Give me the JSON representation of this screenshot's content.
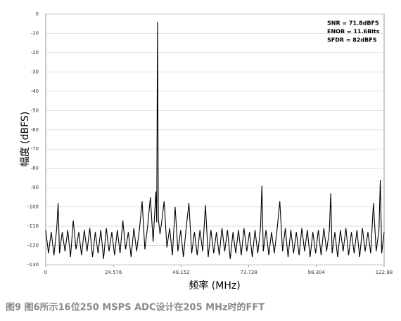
{
  "chart_data": {
    "type": "line",
    "ylabel": "幅度 (dBFS)",
    "xlabel": "频率 (MHz)",
    "caption": "图9   图6所示16位250 MSPS ADC设计在205 MHz时的FFT",
    "annotations": [
      "SNR = 71.8dBFS",
      "ENOB = 11.6Bits",
      "SFDR = 82dBFS"
    ],
    "xlim": [
      0,
      122.88
    ],
    "xticks": [
      0,
      24.576,
      49.152,
      73.728,
      98.304,
      122.88
    ],
    "ylim": [
      -130,
      0
    ],
    "yticks": [
      0,
      -10,
      -20,
      -30,
      -40,
      -50,
      -60,
      -70,
      -80,
      -90,
      -100,
      -110,
      -120,
      -130
    ],
    "grid": true,
    "x": [
      0,
      1,
      2,
      3,
      4,
      4.5,
      5,
      6,
      7,
      8,
      9,
      10,
      11,
      12,
      13,
      14,
      15,
      16,
      17,
      18,
      19,
      20,
      21,
      22,
      23,
      24,
      25,
      26,
      27,
      28,
      29,
      30,
      31,
      32,
      33,
      34,
      35,
      36,
      37,
      38,
      39,
      40,
      40.3,
      40.6,
      40.9,
      41.5,
      42,
      43,
      44,
      45,
      46,
      47,
      48,
      49,
      50,
      51,
      52,
      53,
      54,
      55,
      56,
      57,
      58,
      59,
      60,
      61,
      62,
      63,
      64,
      65,
      66,
      67,
      68,
      69,
      70,
      71,
      72,
      73,
      74,
      75,
      76,
      77,
      78,
      78.5,
      79,
      80,
      81,
      82,
      83,
      84,
      85,
      86,
      87,
      88,
      89,
      90,
      91,
      92,
      93,
      94,
      95,
      96,
      97,
      98,
      99,
      100,
      101,
      102,
      103,
      103.5,
      104,
      105,
      106,
      107,
      108,
      109,
      110,
      111,
      112,
      113,
      114,
      115,
      116,
      117,
      118,
      119,
      120,
      121,
      121.5,
      122,
      122.88
    ],
    "series": [
      {
        "color": "#000000",
        "values": [
          -112,
          -124,
          -113,
          -125,
          -111,
          -98,
          -124,
          -113,
          -123,
          -112,
          -126,
          -107,
          -122,
          -113,
          -125,
          -112,
          -123,
          -111,
          -126,
          -113,
          -124,
          -112,
          -127,
          -111,
          -123,
          -113,
          -125,
          -112,
          -124,
          -107,
          -122,
          -113,
          -126,
          -111,
          -123,
          -112,
          -97,
          -122,
          -110,
          -95,
          -118,
          -92,
          -108,
          -4,
          -106,
          -114,
          -109,
          -97,
          -121,
          -111,
          -125,
          -100,
          -123,
          -112,
          -126,
          -111,
          -98,
          -124,
          -113,
          -125,
          -112,
          -123,
          -99,
          -126,
          -112,
          -124,
          -113,
          -125,
          -111,
          -123,
          -112,
          -127,
          -113,
          -124,
          -112,
          -125,
          -111,
          -123,
          -113,
          -126,
          -112,
          -124,
          -111,
          -89,
          -123,
          -112,
          -125,
          -113,
          -124,
          -112,
          -97,
          -123,
          -111,
          -126,
          -112,
          -124,
          -113,
          -125,
          -111,
          -123,
          -112,
          -126,
          -113,
          -124,
          -112,
          -125,
          -111,
          -123,
          -112,
          -93,
          -124,
          -113,
          -126,
          -112,
          -123,
          -111,
          -125,
          -113,
          -124,
          -112,
          -126,
          -111,
          -123,
          -113,
          -124,
          -98,
          -123,
          -112,
          -86,
          -124,
          -113
        ]
      }
    ]
  }
}
